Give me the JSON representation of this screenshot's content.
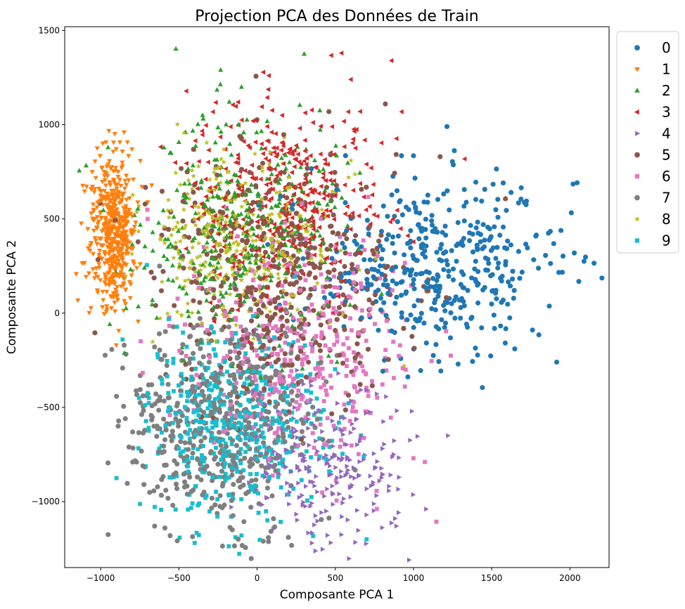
{
  "chart_data": {
    "type": "scatter",
    "title": "Projection PCA des Données de Train",
    "xlabel": "Composante PCA 1",
    "ylabel": "Composante PCA 2",
    "xlim": [
      -1230,
      2250
    ],
    "ylim": [
      -1350,
      1520
    ],
    "xticks": [
      -1000,
      -500,
      0,
      500,
      1000,
      1500,
      2000
    ],
    "yticks": [
      -1000,
      -500,
      0,
      500,
      1000,
      1500
    ],
    "xtick_labels": [
      "−1000",
      "−500",
      "0",
      "500",
      "1000",
      "1500",
      "2000"
    ],
    "ytick_labels": [
      "−1000",
      "−500",
      "0",
      "500",
      "1000",
      "1500"
    ],
    "grid": false,
    "legend_position": "outside-upper-right",
    "series": [
      {
        "name": "0",
        "color": "#1f77b4",
        "marker": "circle",
        "n": 420,
        "cx": 1150,
        "cy": 250,
        "sx": 380,
        "sy": 230,
        "points": [
          [
            2090,
            275
          ],
          [
            2020,
            685
          ],
          [
            1530,
            765
          ],
          [
            1440,
            -395
          ],
          [
            1000,
            835
          ]
        ]
      },
      {
        "name": "1",
        "color": "#ff7f0e",
        "marker": "triangle-down",
        "n": 480,
        "cx": -920,
        "cy": 430,
        "sx": 70,
        "sy": 200,
        "points": [
          [
            -1080,
            345
          ],
          [
            -850,
            960
          ],
          [
            -960,
            20
          ],
          [
            -800,
            870
          ]
        ]
      },
      {
        "name": "2",
        "color": "#2ca02c",
        "marker": "triangle-up",
        "n": 380,
        "cx": -100,
        "cy": 400,
        "sx": 330,
        "sy": 300,
        "points": [
          [
            -100,
            1200
          ],
          [
            -250,
            985
          ],
          [
            -550,
            850
          ],
          [
            -120,
            1000
          ]
        ]
      },
      {
        "name": "3",
        "color": "#d62728",
        "marker": "triangle-left",
        "n": 380,
        "cx": 180,
        "cy": 600,
        "sx": 300,
        "sy": 270,
        "points": [
          [
            540,
            1380
          ],
          [
            860,
            1340
          ],
          [
            600,
            1240
          ],
          [
            160,
            905
          ]
        ]
      },
      {
        "name": "4",
        "color": "#9467bd",
        "marker": "triangle-right",
        "n": 240,
        "cx": 450,
        "cy": -800,
        "sx": 230,
        "sy": 200,
        "points": [
          [
            1220,
            -650
          ],
          [
            1080,
            -1040
          ],
          [
            350,
            -1220
          ],
          [
            890,
            -1130
          ]
        ]
      },
      {
        "name": "5",
        "color": "#8c564b",
        "marker": "circle",
        "n": 450,
        "cx": 150,
        "cy": 200,
        "sx": 380,
        "sy": 320,
        "points": [
          [
            820,
            1110
          ],
          [
            1170,
            830
          ],
          [
            -400,
            680
          ]
        ]
      },
      {
        "name": "6",
        "color": "#e377c2",
        "marker": "square",
        "n": 380,
        "cx": 250,
        "cy": -200,
        "sx": 350,
        "sy": 300,
        "points": [
          [
            1000,
            -770
          ],
          [
            950,
            -300
          ],
          [
            -700,
            500
          ]
        ]
      },
      {
        "name": "7",
        "color": "#7f7f7f",
        "marker": "circle",
        "n": 520,
        "cx": -250,
        "cy": -600,
        "sx": 300,
        "sy": 280,
        "points": [
          [
            -850,
            -170
          ],
          [
            -40,
            -1030
          ],
          [
            200,
            -1190
          ]
        ]
      },
      {
        "name": "8",
        "color": "#bcbd22",
        "marker": "star",
        "n": 360,
        "cx": -150,
        "cy": 380,
        "sx": 320,
        "sy": 220,
        "points": [
          [
            600,
            810
          ],
          [
            940,
            -280
          ]
        ]
      },
      {
        "name": "9",
        "color": "#17becf",
        "marker": "square",
        "n": 460,
        "cx": -150,
        "cy": -600,
        "sx": 280,
        "sy": 240,
        "points": [
          [
            700,
            -1200
          ],
          [
            -100,
            -1180
          ],
          [
            -330,
            -980
          ],
          [
            -860,
            -140
          ]
        ]
      }
    ]
  }
}
